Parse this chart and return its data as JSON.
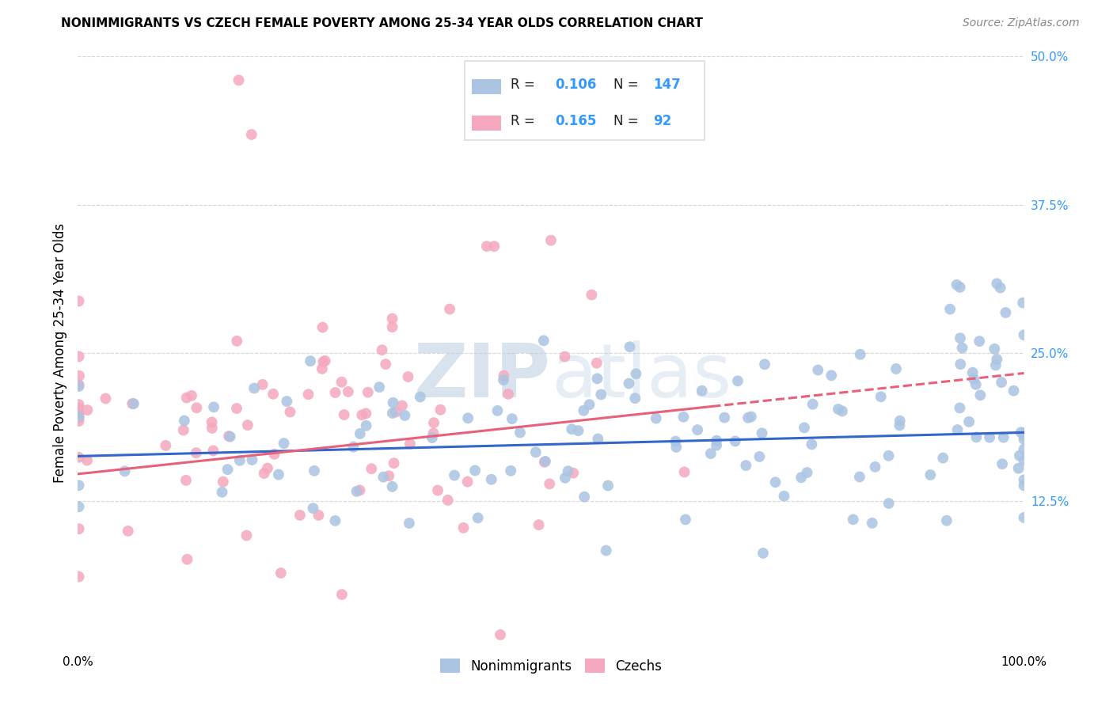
{
  "title": "NONIMMIGRANTS VS CZECH FEMALE POVERTY AMONG 25-34 YEAR OLDS CORRELATION CHART",
  "source": "Source: ZipAtlas.com",
  "ylabel": "Female Poverty Among 25-34 Year Olds",
  "xlim": [
    0,
    1
  ],
  "ylim": [
    0,
    0.5
  ],
  "yticks": [
    0.125,
    0.25,
    0.375,
    0.5
  ],
  "ytick_labels": [
    "12.5%",
    "25.0%",
    "37.5%",
    "50.0%"
  ],
  "nonimmigrants_R": 0.106,
  "nonimmigrants_N": 147,
  "czechs_R": 0.165,
  "czechs_N": 92,
  "nonimmigrant_color": "#aac4e2",
  "czech_color": "#f5a8be",
  "nonimmigrant_line_color": "#3366cc",
  "czech_line_color": "#e8607a",
  "legend_num_color": "#3399ff",
  "watermark_color": "#d0dde8",
  "background_color": "#ffffff",
  "grid_color": "#cccccc",
  "title_fontsize": 11,
  "source_fontsize": 10,
  "ylabel_fontsize": 12,
  "tick_fontsize": 11,
  "legend_fontsize": 12,
  "watermark_fontsize": 68,
  "scatter_size": 100
}
